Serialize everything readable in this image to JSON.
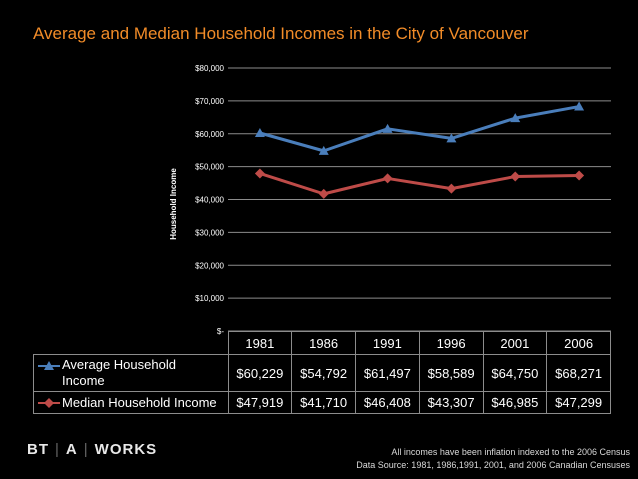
{
  "slide": {
    "title": "Average and Median Household Incomes in the City of Vancouver",
    "logo": {
      "part1": "BT",
      "part2": "A",
      "part3": "WORKS"
    },
    "notes": [
      "All incomes have been inflation indexed to the 2006 Census",
      "Data Source: 1981, 1986,1991, 2001, and 2006 Canadian Censuses"
    ]
  },
  "chart_data": {
    "type": "line",
    "title": "",
    "xlabel": "",
    "ylabel": "Household Income",
    "categories": [
      "1981",
      "1986",
      "1991",
      "1996",
      "2001",
      "2006"
    ],
    "ylim": [
      0,
      80000
    ],
    "yticks": [
      "$-",
      "$10,000",
      "$20,000",
      "$30,000",
      "$40,000",
      "$50,000",
      "$60,000",
      "$70,000",
      "$80,000"
    ],
    "grid": true,
    "legend": "table",
    "series": [
      {
        "name": "Average Household Income",
        "values": [
          60229,
          54792,
          61497,
          58589,
          64750,
          68271
        ],
        "labels": [
          "$60,229",
          "$54,792",
          "$61,497",
          "$58,589",
          "$64,750",
          "$68,271"
        ],
        "color": "#4a7ebb",
        "marker": "triangle"
      },
      {
        "name": "Median Household Income",
        "values": [
          47919,
          41710,
          46408,
          43307,
          46985,
          47299
        ],
        "labels": [
          "$47,919",
          "$41,710",
          "$46,408",
          "$43,307",
          "$46,985",
          "$47,299"
        ],
        "color": "#be4b48",
        "marker": "diamond"
      }
    ]
  }
}
